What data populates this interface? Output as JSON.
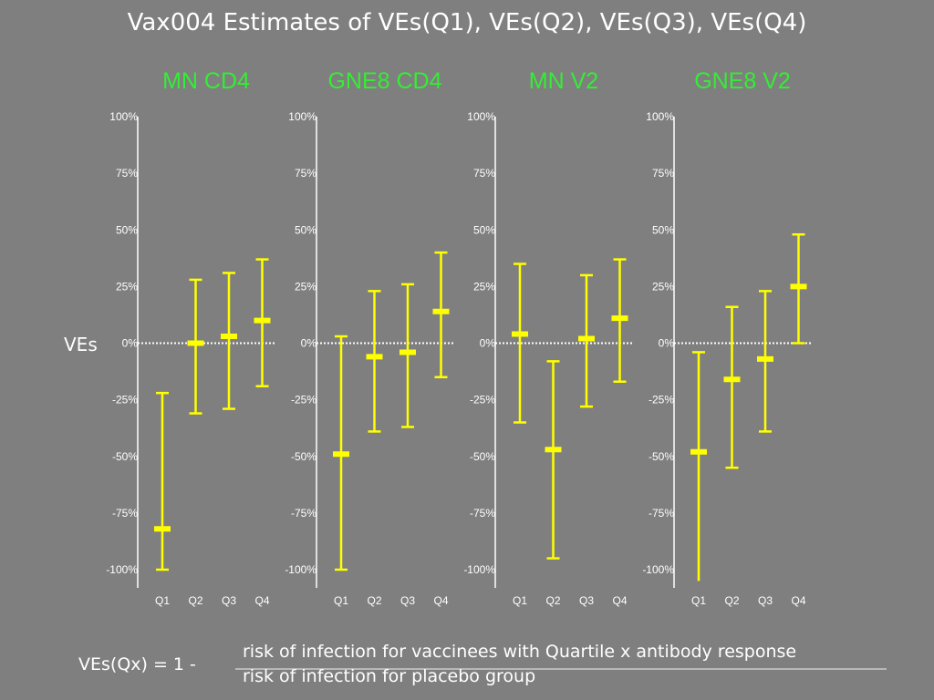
{
  "title": "Vax004 Estimates of VEs(Q1), VEs(Q2), VEs(Q3), VEs(Q4)",
  "y_axis_label": "VEs",
  "formula": {
    "lhs": "VEs(Qx) = 1 -",
    "numerator": "risk of infection for vaccinees with Quartile x antibody response",
    "denominator": "risk of infection for placebo group"
  },
  "colors": {
    "background": "#7f7f7f",
    "panel_title": "#33ee33",
    "estimate": "#ffff00",
    "axis": "#ffffff",
    "reference_line": "#ffffff"
  },
  "chart_data": [
    {
      "type": "errorbar",
      "title": "MN CD4",
      "categories": [
        "Q1",
        "Q2",
        "Q3",
        "Q4"
      ],
      "y_tick_labels": [
        "100%",
        "75%",
        "50%",
        "25%",
        "0%",
        "-25%",
        "-50%",
        "-75%",
        "-100%"
      ],
      "ylim": [
        -100,
        100
      ],
      "reference_line": 0,
      "estimate": [
        -82,
        0,
        3,
        10
      ],
      "lower": [
        -100,
        -31,
        -29,
        -19
      ],
      "upper": [
        -22,
        28,
        31,
        37
      ]
    },
    {
      "type": "errorbar",
      "title": "GNE8 CD4",
      "categories": [
        "Q1",
        "Q2",
        "Q3",
        "Q4"
      ],
      "y_tick_labels": [
        "100%",
        "75%",
        "50%",
        "25%",
        "0%",
        "-25%",
        "-50%",
        "-75%",
        "-100%"
      ],
      "ylim": [
        -100,
        100
      ],
      "reference_line": 0,
      "estimate": [
        -49,
        -6,
        -4,
        14
      ],
      "lower": [
        -100,
        -39,
        -37,
        -15
      ],
      "upper": [
        3,
        23,
        26,
        40
      ]
    },
    {
      "type": "errorbar",
      "title": "MN V2",
      "categories": [
        "Q1",
        "Q2",
        "Q3",
        "Q4"
      ],
      "y_tick_labels": [
        "100%",
        "75%",
        "50%",
        "25%",
        "0%",
        "-25%",
        "-50%",
        "-75%",
        "-100%"
      ],
      "ylim": [
        -100,
        100
      ],
      "reference_line": 0,
      "estimate": [
        4,
        -47,
        2,
        11
      ],
      "lower": [
        -35,
        -95,
        -28,
        -17
      ],
      "upper": [
        35,
        -8,
        30,
        37
      ]
    },
    {
      "type": "errorbar",
      "title": "GNE8 V2",
      "categories": [
        "Q1",
        "Q2",
        "Q3",
        "Q4"
      ],
      "y_tick_labels": [
        "100%",
        "75%",
        "50%",
        "25%",
        "0%",
        "-25%",
        "-50%",
        "-75%",
        "-100%"
      ],
      "ylim": [
        -100,
        100
      ],
      "reference_line": 0,
      "estimate": [
        -48,
        -16,
        -7,
        25
      ],
      "lower": [
        -105,
        -55,
        -39,
        0
      ],
      "upper": [
        -4,
        16,
        23,
        48
      ]
    }
  ]
}
